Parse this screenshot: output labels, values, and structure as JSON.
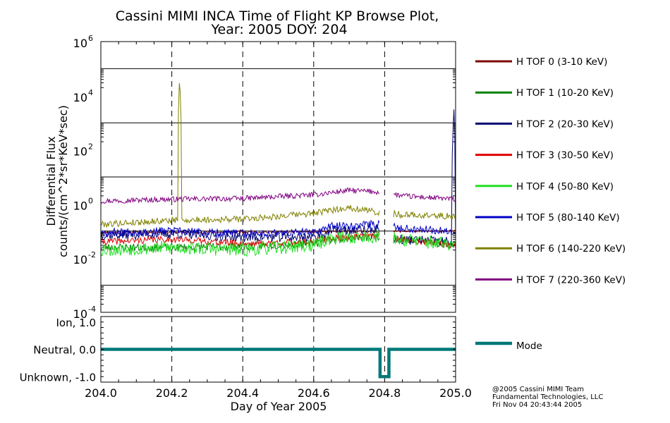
{
  "chart_data": [
    {
      "type": "line",
      "title": [
        "Cassini MIMI INCA Time of Flight KP Browse Plot,",
        "Year: 2005 DOY: 204"
      ],
      "xlabel": "Day of Year 2005",
      "ylabel": [
        "Differential Flux",
        "counts/(cm^2*sr*KeV*sec)"
      ],
      "yscale": "log",
      "ylim": [
        0.0001,
        1000000
      ],
      "xlim": [
        204.0,
        205.0
      ],
      "ytick_exponents": [
        "6",
        "4",
        "2",
        "0",
        "-2",
        "-4"
      ],
      "grid": "horizontal solid at each decade; vertical dashed at 204.2, 204.4, 204.6, 204.8",
      "legend_position": "right",
      "data_gap": [
        204.785,
        204.825
      ],
      "series": [
        {
          "name": "H TOF 0 (3-10 KeV)",
          "color": "#7a0000",
          "baseline": [
            [
              204.0,
              0.09
            ],
            [
              204.3,
              0.09
            ],
            [
              204.6,
              0.095
            ],
            [
              205.0,
              0.1
            ]
          ],
          "noise": 0.04,
          "seed": 11
        },
        {
          "name": "H TOF 1 (10-20 KeV)",
          "color": "#008000",
          "baseline": [
            [
              204.0,
              0.025
            ],
            [
              204.2,
              0.025
            ],
            [
              204.4,
              0.027
            ],
            [
              204.6,
              0.035
            ],
            [
              204.64,
              0.05
            ],
            [
              204.78,
              0.06
            ],
            [
              204.85,
              0.05
            ],
            [
              205.0,
              0.03
            ]
          ],
          "noise": 0.15,
          "seed": 23
        },
        {
          "name": "H TOF 2 (20-30 KeV)",
          "color": "#00006e",
          "baseline": [
            [
              204.0,
              0.07
            ],
            [
              204.2,
              0.08
            ],
            [
              204.4,
              0.06
            ],
            [
              204.6,
              0.06
            ],
            [
              204.65,
              0.1
            ],
            [
              204.78,
              0.12
            ],
            [
              204.83,
              0.05
            ],
            [
              205.0,
              0.04
            ]
          ],
          "noise": 0.18,
          "seed": 37,
          "spikes": [
            {
              "x": 204.995,
              "y": 4000
            }
          ]
        },
        {
          "name": "H TOF 3 (30-50 KeV)",
          "color": "#e00000",
          "baseline": [
            [
              204.0,
              0.04
            ],
            [
              204.2,
              0.05
            ],
            [
              204.4,
              0.035
            ],
            [
              204.6,
              0.04
            ],
            [
              204.65,
              0.055
            ],
            [
              204.78,
              0.07
            ],
            [
              204.85,
              0.05
            ],
            [
              205.0,
              0.03
            ]
          ],
          "noise": 0.12,
          "seed": 41
        },
        {
          "name": "H TOF 4 (50-80 KeV)",
          "color": "#22e022",
          "baseline": [
            [
              204.0,
              0.02
            ],
            [
              204.2,
              0.025
            ],
            [
              204.4,
              0.02
            ],
            [
              204.6,
              0.03
            ],
            [
              204.65,
              0.055
            ],
            [
              204.78,
              0.065
            ],
            [
              204.85,
              0.05
            ],
            [
              205.0,
              0.03
            ]
          ],
          "noise": 0.25,
          "seed": 53
        },
        {
          "name": "H TOF 5 (80-140 KeV)",
          "color": "#0000c8",
          "baseline": [
            [
              204.0,
              0.09
            ],
            [
              204.2,
              0.1
            ],
            [
              204.4,
              0.08
            ],
            [
              204.6,
              0.09
            ],
            [
              204.65,
              0.15
            ],
            [
              204.78,
              0.18
            ],
            [
              204.85,
              0.13
            ],
            [
              205.0,
              0.1
            ]
          ],
          "noise": 0.15,
          "seed": 67
        },
        {
          "name": "H TOF 6 (140-220 KeV)",
          "color": "#808000",
          "baseline": [
            [
              204.0,
              0.18
            ],
            [
              204.2,
              0.25
            ],
            [
              204.4,
              0.28
            ],
            [
              204.6,
              0.45
            ],
            [
              204.7,
              0.75
            ],
            [
              204.78,
              0.5
            ],
            [
              204.85,
              0.4
            ],
            [
              205.0,
              0.35
            ]
          ],
          "noise": 0.12,
          "seed": 79,
          "spikes": [
            {
              "x": 204.222,
              "y": 60000
            }
          ]
        },
        {
          "name": "H TOF 7 (220-360 KeV)",
          "color": "#800080",
          "baseline": [
            [
              204.0,
              1.3
            ],
            [
              204.2,
              1.5
            ],
            [
              204.4,
              1.6
            ],
            [
              204.6,
              2.2
            ],
            [
              204.7,
              3.2
            ],
            [
              204.78,
              2.8
            ],
            [
              204.85,
              2.0
            ],
            [
              205.0,
              1.5
            ]
          ],
          "noise": 0.1,
          "seed": 97
        }
      ]
    },
    {
      "type": "line",
      "ytick_labels": [
        "Ion, 1.0",
        "Neutral, 0.0",
        "Unknown, -1.0"
      ],
      "ylim": [
        -1.2,
        1.2
      ],
      "xlim": [
        204.0,
        205.0
      ],
      "xticks": [
        "204.0",
        "204.2",
        "204.4",
        "204.6",
        "204.8",
        "205.0"
      ],
      "series": [
        {
          "name": "Mode",
          "color": "#007878",
          "points": [
            [
              204.0,
              0
            ],
            [
              204.787,
              0
            ],
            [
              204.787,
              -1
            ],
            [
              204.812,
              -1
            ],
            [
              204.812,
              0
            ],
            [
              205.0,
              0
            ]
          ]
        }
      ]
    }
  ],
  "footer": [
    "@2005 Cassini MIMI Team",
    "Fundamental Technologies, LLC",
    "Fri Nov 04 20:43:44 2005"
  ]
}
